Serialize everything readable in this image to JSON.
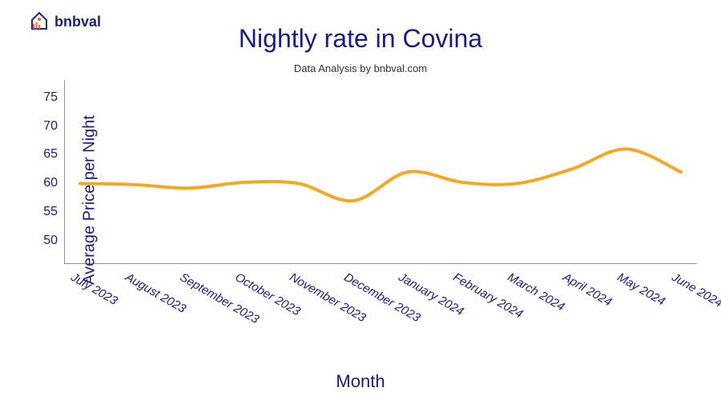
{
  "logo": {
    "text": "bnbval",
    "accent_color": "#ff6b35",
    "text_color": "#1a237e"
  },
  "chart": {
    "type": "line",
    "title": "Nightly rate in Covina",
    "subtitle": "Data Analysis by bnbval.com",
    "ylabel": "Average Price per Night",
    "xlabel": "Month",
    "title_color": "#1a1a8a",
    "label_color": "#1a1a8a",
    "subtitle_color": "#333333",
    "title_fontsize": 32,
    "subtitle_fontsize": 13,
    "label_fontsize": 20,
    "tick_fontsize": 16,
    "xtick_fontsize": 15,
    "background_color": "#ffffff",
    "line_color": "#f5a623",
    "line_width": 4,
    "axis_color": "#1a1a8a",
    "axis_width": 1,
    "ylim": [
      46,
      78
    ],
    "yticks": [
      50,
      55,
      60,
      65,
      70,
      75
    ],
    "categories": [
      "July 2023",
      "August 2023",
      "September 2023",
      "October 2023",
      "November 2023",
      "December 2023",
      "January 2024",
      "February 2024",
      "March 2024",
      "April 2024",
      "May 2024",
      "June 2024"
    ],
    "values": [
      60.0,
      59.8,
      59.2,
      60.2,
      60.0,
      57.0,
      62.0,
      60.2,
      60.0,
      62.5,
      66.0,
      62.0
    ],
    "xtick_rotation": 30,
    "xtick_style": "italic"
  }
}
